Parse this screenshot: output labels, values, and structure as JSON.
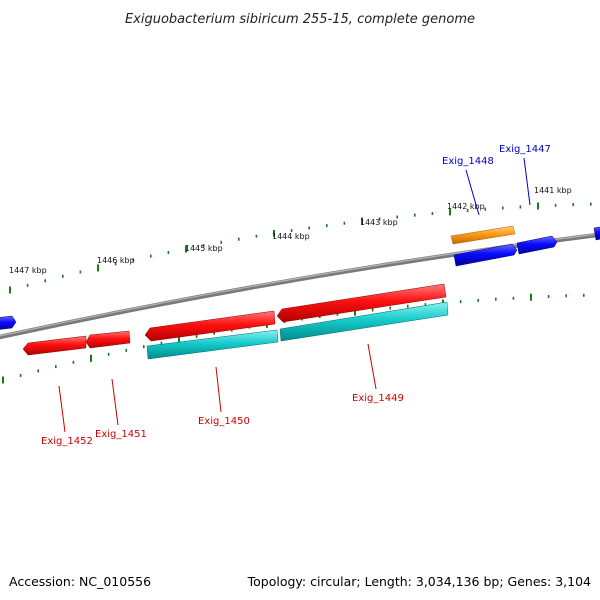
{
  "title": "Exiguobacterium sibiricum 255-15, complete genome",
  "footer": {
    "accession": "Accession: NC_010556",
    "summary": "Topology: circular; Length: 3,034,136 bp; Genes: 3,104"
  },
  "colors": {
    "backbone": "#8a8a8a",
    "ticks": "#1a7a1a",
    "gene_red": "#ff1010",
    "gene_blue": "#0a0aff",
    "gene_orange": "#ff9a1a",
    "gene_cyan": "#16cccc",
    "label_red": "#cc0000",
    "label_blue": "#0000cc",
    "leader": "#cc0000"
  },
  "kbp_labels": [
    "1447 kbp",
    "1446 kbp",
    "1445 kbp",
    "1444 kbp",
    "1443 kbp",
    "1442 kbp",
    "1441 kbp"
  ],
  "gene_labels": [
    {
      "name": "Exig_1448",
      "color": "blue"
    },
    {
      "name": "Exig_1447",
      "color": "blue"
    },
    {
      "name": "Exig_1452",
      "color": "red"
    },
    {
      "name": "Exig_1451",
      "color": "red"
    },
    {
      "name": "Exig_1450",
      "color": "red"
    },
    {
      "name": "Exig_1449",
      "color": "red"
    }
  ]
}
